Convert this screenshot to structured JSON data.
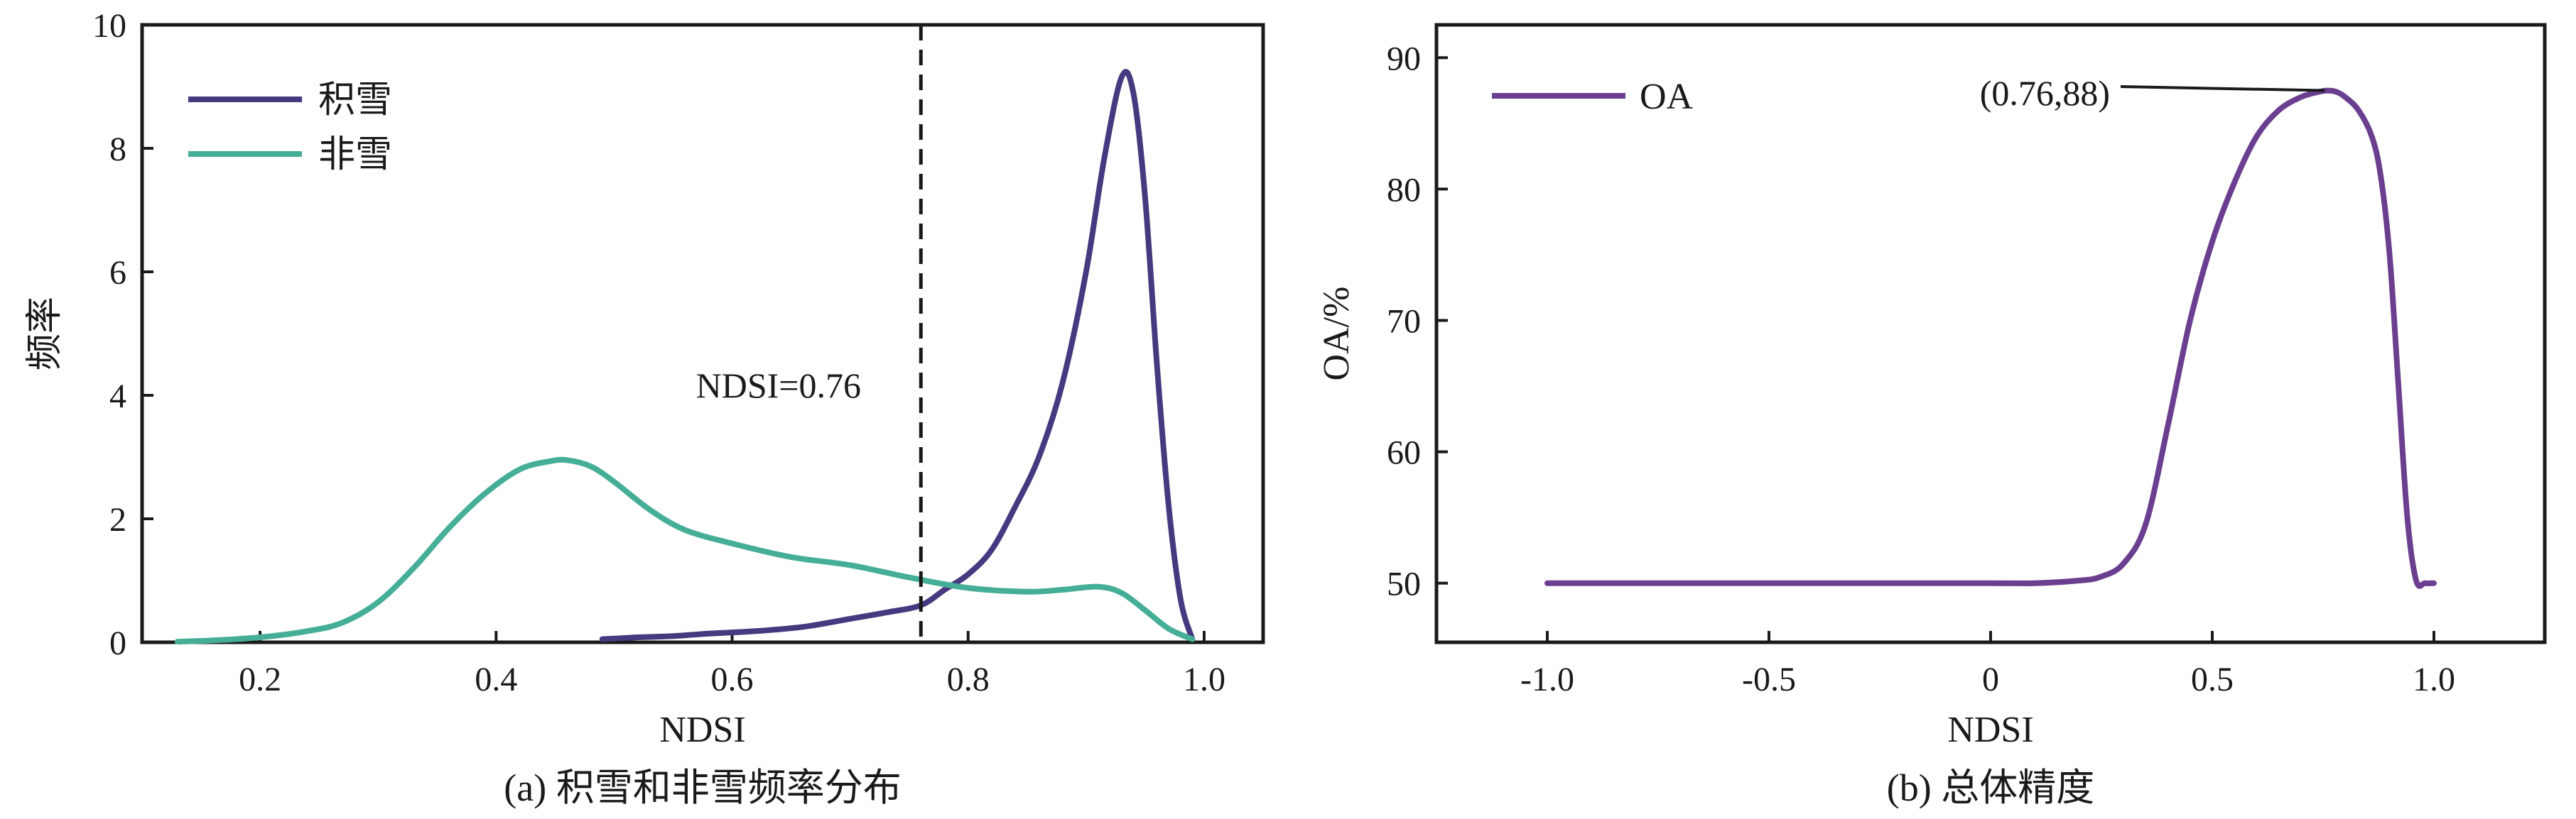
{
  "chart_data": [
    {
      "type": "line",
      "caption": "(a) 积雪和非雪频率分布",
      "xlabel": "NDSI",
      "ylabel": "频率",
      "xlim": [
        0.1,
        1.05
      ],
      "ylim": [
        0,
        10
      ],
      "xticks": [
        0.2,
        0.4,
        0.6,
        0.8,
        1.0
      ],
      "xtick_labels": [
        "0.2",
        "0.4",
        "0.6",
        "0.8",
        "1.0"
      ],
      "yticks": [
        0,
        2,
        4,
        6,
        8,
        10
      ],
      "ytick_labels": [
        "0",
        "2",
        "4",
        "6",
        "8",
        "10"
      ],
      "legend": "top-left",
      "grid": false,
      "vline": {
        "x": 0.76,
        "style": "dashed",
        "label": "NDSI=0.76"
      },
      "series": [
        {
          "name": "积雪",
          "color": "#46397f",
          "x": [
            0.49,
            0.52,
            0.55,
            0.58,
            0.62,
            0.66,
            0.7,
            0.73,
            0.76,
            0.78,
            0.8,
            0.82,
            0.84,
            0.86,
            0.88,
            0.9,
            0.915,
            0.93,
            0.94,
            0.95,
            0.96,
            0.97,
            0.98,
            0.99
          ],
          "values": [
            0.05,
            0.08,
            0.1,
            0.14,
            0.18,
            0.25,
            0.38,
            0.48,
            0.6,
            0.85,
            1.1,
            1.5,
            2.2,
            3.0,
            4.2,
            6.0,
            7.8,
            9.15,
            8.9,
            7.2,
            4.5,
            2.2,
            0.7,
            0.05
          ]
        },
        {
          "name": "非雪",
          "color": "#45ae96",
          "x": [
            0.13,
            0.16,
            0.2,
            0.24,
            0.27,
            0.3,
            0.33,
            0.36,
            0.39,
            0.42,
            0.445,
            0.46,
            0.48,
            0.5,
            0.53,
            0.56,
            0.6,
            0.65,
            0.7,
            0.75,
            0.8,
            0.85,
            0.88,
            0.91,
            0.93,
            0.95,
            0.97,
            0.99
          ],
          "values": [
            0.01,
            0.03,
            0.08,
            0.18,
            0.32,
            0.65,
            1.2,
            1.85,
            2.4,
            2.8,
            2.93,
            2.95,
            2.85,
            2.6,
            2.15,
            1.82,
            1.6,
            1.38,
            1.25,
            1.05,
            0.88,
            0.82,
            0.85,
            0.9,
            0.8,
            0.52,
            0.22,
            0.05
          ]
        }
      ]
    },
    {
      "type": "line",
      "caption": "(b) 总体精度",
      "xlabel": "NDSI",
      "ylabel": "OA/%",
      "xlim": [
        -1.25,
        1.25
      ],
      "ylim": [
        45.5,
        92.5
      ],
      "xticks": [
        -1.0,
        -0.5,
        0,
        0.5,
        1.0
      ],
      "xtick_labels": [
        "-1.0",
        "-0.5",
        "0",
        "0.5",
        "1.0"
      ],
      "yticks": [
        50,
        60,
        70,
        80,
        90
      ],
      "ytick_labels": [
        "50",
        "60",
        "70",
        "80",
        "90"
      ],
      "legend": "top-left",
      "grid": false,
      "annotation": {
        "text": "(0.76,88)",
        "x": 0.76,
        "y": 87.5
      },
      "series": [
        {
          "name": "OA",
          "color": "#6b3f8f",
          "x": [
            -1.0,
            -0.5,
            0.0,
            0.1,
            0.2,
            0.25,
            0.3,
            0.35,
            0.4,
            0.45,
            0.5,
            0.55,
            0.6,
            0.65,
            0.7,
            0.74,
            0.76,
            0.78,
            0.8,
            0.83,
            0.86,
            0.88,
            0.9,
            0.92,
            0.94,
            0.96,
            0.98,
            1.0
          ],
          "values": [
            50,
            50,
            50,
            50,
            50.2,
            50.5,
            51.5,
            54.5,
            62,
            70,
            76,
            80.5,
            84,
            86,
            87,
            87.4,
            87.5,
            87.4,
            87,
            86,
            84,
            81,
            75,
            65,
            55,
            50.2,
            50,
            50
          ]
        }
      ]
    }
  ]
}
